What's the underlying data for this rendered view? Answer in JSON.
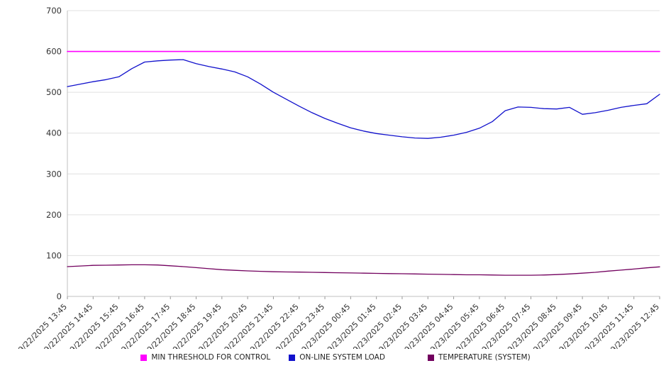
{
  "chart_data": {
    "type": "line",
    "title": "",
    "xlabel": "",
    "ylabel": "",
    "ylim": [
      0,
      700
    ],
    "y_ticks": [
      0,
      100,
      200,
      300,
      400,
      500,
      600,
      700
    ],
    "grid": true,
    "legend_position": "bottom",
    "x_labels": [
      "9/22/2025 13:45",
      "9/22/2025 14:45",
      "9/22/2025 15:45",
      "9/22/2025 16:45",
      "9/22/2025 17:45",
      "9/22/2025 18:45",
      "9/22/2025 19:45",
      "9/22/2025 20:45",
      "9/22/2025 21:45",
      "9/22/2025 22:45",
      "9/22/2025 23:45",
      "9/23/2025 00:45",
      "9/23/2025 01:45",
      "9/23/2025 02:45",
      "9/23/2025 03:45",
      "9/23/2025 04:45",
      "9/23/2025 05:45",
      "9/23/2025 06:45",
      "9/23/2025 07:45",
      "9/23/2025 08:45",
      "9/23/2025 09:45",
      "9/23/2025 10:45",
      "9/23/2025 11:45",
      "9/23/2025 12:45"
    ],
    "series": [
      {
        "name": "MIN THRESHOLD FOR CONTROL",
        "color": "#ff00ff",
        "stroke_width": 1.6,
        "values": [
          600,
          600
        ]
      },
      {
        "name": "ON-LINE SYSTEM LOAD",
        "color": "#1111cc",
        "stroke_width": 1.3,
        "values": [
          514,
          520,
          526,
          531,
          538,
          558,
          574,
          577,
          579,
          580,
          570,
          563,
          557,
          550,
          538,
          520,
          500,
          483,
          466,
          450,
          436,
          424,
          413,
          405,
          399,
          395,
          391,
          388,
          387,
          390,
          395,
          402,
          412,
          428,
          455,
          464,
          463,
          460,
          459,
          463,
          446,
          450,
          456,
          463,
          468,
          472,
          495
        ]
      },
      {
        "name": "TEMPERATURE (SYSTEM)",
        "color": "#72005e",
        "stroke_width": 1.3,
        "values": [
          73,
          74.5,
          76,
          76.5,
          77,
          77.5,
          77.5,
          77,
          75,
          73,
          70.5,
          68,
          65.5,
          64,
          62.5,
          61.5,
          60.5,
          60,
          59.5,
          59,
          58.5,
          58,
          57.5,
          57,
          56.5,
          56,
          55.5,
          55,
          54.5,
          54,
          53.5,
          53,
          53,
          52.5,
          52,
          52,
          52,
          52.5,
          53.5,
          55,
          57,
          59,
          62,
          64.5,
          67,
          70,
          72.5
        ]
      }
    ]
  }
}
